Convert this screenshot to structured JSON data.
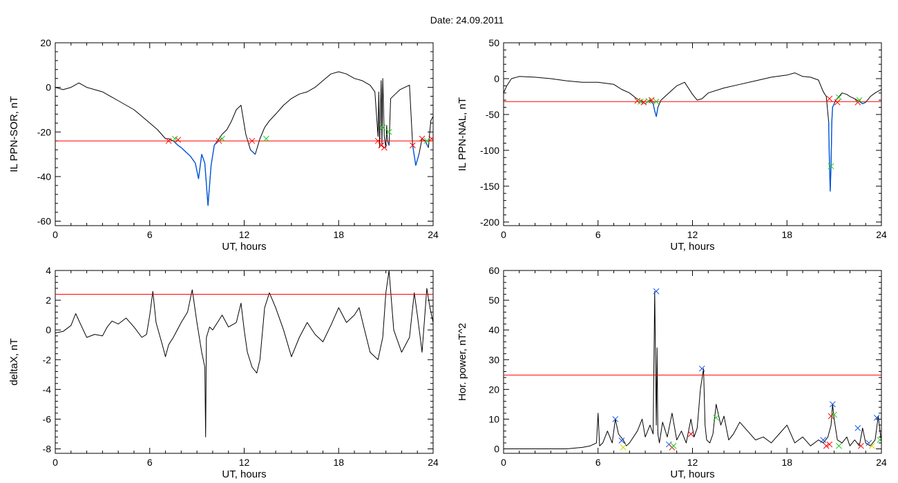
{
  "figure": {
    "title": "Date:  24.09.2011"
  },
  "chart_data": [
    {
      "type": "line",
      "id": "ppn-sor",
      "xlabel": "UT, hours",
      "ylabel": "IL PPN-SOR, nT",
      "xlim": [
        0,
        24
      ],
      "ylim": [
        -62,
        20
      ],
      "xticks": [
        0,
        6,
        12,
        18,
        24
      ],
      "yticks": [
        -60,
        -40,
        -20,
        0,
        20
      ],
      "threshold": -24,
      "colors": {
        "line": "#000000",
        "below_threshold": "#0055dd",
        "threshold": "#ff0000"
      },
      "x": [
        0,
        0.5,
        1.0,
        1.5,
        2.0,
        2.5,
        3.0,
        3.5,
        4.0,
        4.5,
        5.0,
        5.5,
        6.0,
        6.5,
        7.0,
        7.2,
        7.5,
        7.8,
        8.0,
        8.3,
        8.6,
        8.9,
        9.1,
        9.3,
        9.5,
        9.7,
        9.9,
        10.1,
        10.3,
        10.6,
        10.9,
        11.2,
        11.5,
        11.8,
        12.1,
        12.4,
        12.7,
        13.0,
        13.3,
        13.6,
        14.0,
        14.5,
        15.0,
        15.5,
        16.0,
        16.5,
        17.0,
        17.5,
        18.0,
        18.5,
        19.0,
        19.5,
        20.0,
        20.3,
        20.5,
        20.55,
        20.6,
        20.7,
        20.75,
        20.8,
        20.9,
        21.0,
        21.05,
        21.1,
        21.2,
        21.3,
        21.6,
        21.9,
        22.2,
        22.5,
        22.7,
        22.9,
        23.1,
        23.3,
        23.5,
        23.7,
        23.85,
        24.0
      ],
      "values": [
        0,
        -1,
        0,
        2,
        0,
        -1,
        -2,
        -4,
        -6,
        -8,
        -10,
        -13,
        -16,
        -19,
        -23,
        -23,
        -24,
        -26,
        -27,
        -29,
        -31,
        -34,
        -41,
        -30,
        -34,
        -53,
        -35,
        -26,
        -24,
        -21,
        -19,
        -15,
        -10,
        -8,
        -21,
        -28,
        -30,
        -23,
        -18,
        -15,
        -12,
        -8,
        -5,
        -3,
        -2,
        0,
        3,
        6,
        7,
        6,
        4,
        3,
        1,
        -2,
        -22,
        -2,
        -27,
        3,
        -26,
        4,
        -22,
        -27,
        -17,
        -24,
        -26,
        -5,
        -3,
        -1,
        0,
        1,
        -26,
        -35,
        -30,
        -23,
        -24,
        -27,
        -15,
        -13
      ],
      "markers": [
        {
          "x": 7.2,
          "y": -24,
          "color": "red"
        },
        {
          "x": 7.6,
          "y": -23,
          "color": "green"
        },
        {
          "x": 7.8,
          "y": -23.5,
          "color": "red"
        },
        {
          "x": 10.4,
          "y": -24,
          "color": "red"
        },
        {
          "x": 10.6,
          "y": -23,
          "color": "green"
        },
        {
          "x": 12.5,
          "y": -24,
          "color": "red"
        },
        {
          "x": 13.4,
          "y": -23,
          "color": "green"
        },
        {
          "x": 20.5,
          "y": -24,
          "color": "red"
        },
        {
          "x": 20.7,
          "y": -26,
          "color": "red"
        },
        {
          "x": 20.8,
          "y": -18,
          "color": "green"
        },
        {
          "x": 20.9,
          "y": -27,
          "color": "red"
        },
        {
          "x": 21.2,
          "y": -20,
          "color": "green"
        },
        {
          "x": 22.7,
          "y": -26,
          "color": "red"
        },
        {
          "x": 23.3,
          "y": -23,
          "color": "red"
        },
        {
          "x": 23.6,
          "y": -24,
          "color": "green"
        },
        {
          "x": 23.9,
          "y": -23,
          "color": "red"
        }
      ]
    },
    {
      "type": "line",
      "id": "ppn-nal",
      "xlabel": "UT, hours",
      "ylabel": "IL PPN-NAL, nT",
      "xlim": [
        0,
        24
      ],
      "ylim": [
        -205,
        50
      ],
      "xticks": [
        0,
        6,
        12,
        18,
        24
      ],
      "yticks": [
        -200,
        -150,
        -100,
        -50,
        0,
        50
      ],
      "threshold": -32,
      "colors": {
        "line": "#000000",
        "below_threshold": "#0055dd",
        "threshold": "#ff0000"
      },
      "x": [
        0,
        0.2,
        0.5,
        1.0,
        2.0,
        3.0,
        4.0,
        5.0,
        6.0,
        7.0,
        7.5,
        8.0,
        8.4,
        8.7,
        9.0,
        9.3,
        9.5,
        9.6,
        9.7,
        9.8,
        10.0,
        10.5,
        11.0,
        11.5,
        12.0,
        12.3,
        12.6,
        13.0,
        14.0,
        15.0,
        16.0,
        17.0,
        18.0,
        18.5,
        19.0,
        19.5,
        20.0,
        20.3,
        20.5,
        20.65,
        20.7,
        20.75,
        20.8,
        20.85,
        20.9,
        21.0,
        21.1,
        21.3,
        21.5,
        21.8,
        22.0,
        22.3,
        22.6,
        22.8,
        23.0,
        23.3,
        23.6,
        24.0
      ],
      "values": [
        -20,
        -10,
        0,
        3,
        2,
        0,
        -3,
        -5,
        -5,
        -8,
        -15,
        -20,
        -27,
        -31,
        -35,
        -30,
        -35,
        -45,
        -53,
        -40,
        -30,
        -20,
        -10,
        -5,
        -22,
        -30,
        -28,
        -20,
        -13,
        -8,
        -3,
        2,
        5,
        8,
        3,
        2,
        -2,
        -18,
        -25,
        -60,
        -120,
        -157,
        -120,
        -60,
        -40,
        -35,
        -30,
        -25,
        -20,
        -22,
        -25,
        -28,
        -32,
        -35,
        -33,
        -25,
        -20,
        -15
      ],
      "markers": [
        {
          "x": 8.5,
          "y": -31,
          "color": "red"
        },
        {
          "x": 8.7,
          "y": -32,
          "color": "green"
        },
        {
          "x": 8.9,
          "y": -33,
          "color": "red"
        },
        {
          "x": 9.2,
          "y": -31,
          "color": "green"
        },
        {
          "x": 9.4,
          "y": -30,
          "color": "red"
        },
        {
          "x": 9.7,
          "y": -32,
          "color": "green"
        },
        {
          "x": 20.7,
          "y": -28,
          "color": "red"
        },
        {
          "x": 20.8,
          "y": -122,
          "color": "green"
        },
        {
          "x": 21.2,
          "y": -33,
          "color": "red"
        },
        {
          "x": 21.3,
          "y": -26,
          "color": "green"
        },
        {
          "x": 22.5,
          "y": -33,
          "color": "red"
        },
        {
          "x": 22.6,
          "y": -30,
          "color": "green"
        }
      ]
    },
    {
      "type": "line",
      "id": "deltax",
      "xlabel": "UT, hours",
      "ylabel": "deltaX, nT",
      "xlim": [
        0,
        24
      ],
      "ylim": [
        -8.3,
        4
      ],
      "xticks": [
        0,
        6,
        12,
        18,
        24
      ],
      "yticks": [
        -8,
        -6,
        -4,
        -2,
        0,
        2,
        4
      ],
      "threshold": 2.4,
      "colors": {
        "line": "#000000",
        "threshold": "#ff0000"
      },
      "x": [
        0,
        0.5,
        1.0,
        1.3,
        1.6,
        2.0,
        2.5,
        3.0,
        3.3,
        3.6,
        4.0,
        4.5,
        5.0,
        5.5,
        5.8,
        6.0,
        6.2,
        6.4,
        6.8,
        7.0,
        7.2,
        7.5,
        8.0,
        8.4,
        8.7,
        9.0,
        9.3,
        9.5,
        9.55,
        9.6,
        9.8,
        10.0,
        10.3,
        10.6,
        11.0,
        11.5,
        11.8,
        12.0,
        12.2,
        12.5,
        12.8,
        13.0,
        13.3,
        13.6,
        14.0,
        14.5,
        15.0,
        15.5,
        16.0,
        16.5,
        17.0,
        17.5,
        18.0,
        18.5,
        19.0,
        19.3,
        19.6,
        20.0,
        20.5,
        20.8,
        21.0,
        21.2,
        21.5,
        22.0,
        22.5,
        22.8,
        23.0,
        23.3,
        23.6,
        23.8,
        24.0
      ],
      "values": [
        -0.2,
        -0.1,
        0.3,
        1.1,
        0.4,
        -0.5,
        -0.3,
        -0.4,
        0.2,
        0.6,
        0.4,
        0.8,
        0.2,
        -0.5,
        -0.3,
        1.0,
        2.6,
        0.5,
        -1.0,
        -1.8,
        -1.0,
        -0.5,
        0.5,
        1.2,
        2.7,
        0.5,
        -1.5,
        -2.5,
        -7.2,
        -0.5,
        0.2,
        0.0,
        0.5,
        1.0,
        0.2,
        0.5,
        1.8,
        0.0,
        -1.5,
        -2.5,
        -2.9,
        -2.0,
        1.5,
        2.5,
        1.5,
        0.0,
        -1.8,
        -0.5,
        0.5,
        -0.3,
        -0.8,
        0.3,
        1.5,
        0.5,
        1.0,
        1.5,
        0.2,
        -1.5,
        -2.0,
        -0.5,
        2.5,
        4.0,
        0.0,
        -1.5,
        -0.5,
        2.5,
        1.0,
        -1.5,
        2.8,
        1.5,
        0.5
      ]
    },
    {
      "type": "line",
      "id": "hor-power",
      "xlabel": "UT, hours",
      "ylabel": "Hor. power, nT^2",
      "xlim": [
        0,
        24
      ],
      "ylim": [
        -1.5,
        60
      ],
      "xticks": [
        0,
        6,
        12,
        18,
        24
      ],
      "yticks": [
        0,
        10,
        20,
        30,
        40,
        50,
        60
      ],
      "threshold": 24.8,
      "colors": {
        "line": "#000000",
        "threshold": "#ff0000"
      },
      "x": [
        0,
        2.0,
        4.0,
        5.0,
        5.5,
        5.9,
        6.0,
        6.1,
        6.3,
        6.6,
        6.9,
        7.1,
        7.3,
        7.6,
        7.8,
        8.0,
        8.5,
        8.8,
        9.0,
        9.3,
        9.5,
        9.6,
        9.7,
        9.75,
        9.8,
        9.9,
        10.1,
        10.4,
        10.7,
        11.0,
        11.3,
        11.6,
        11.9,
        12.1,
        12.3,
        12.5,
        12.7,
        12.8,
        12.9,
        13.1,
        13.3,
        13.5,
        13.8,
        14.0,
        14.3,
        14.6,
        15.0,
        15.5,
        16.0,
        16.5,
        17.0,
        17.5,
        18.0,
        18.5,
        19.0,
        19.5,
        20.0,
        20.3,
        20.6,
        20.8,
        20.9,
        21.0,
        21.2,
        21.5,
        21.8,
        22.0,
        22.3,
        22.6,
        22.8,
        23.0,
        23.3,
        23.6,
        23.8,
        24.0
      ],
      "values": [
        0,
        0,
        0,
        0.5,
        1,
        2,
        12,
        1,
        2,
        6,
        2,
        10,
        5,
        3,
        1,
        2,
        6,
        10,
        4,
        8,
        5,
        53,
        8,
        34,
        5,
        2,
        9,
        4,
        12,
        3,
        6,
        2,
        10,
        4,
        7,
        20,
        27,
        8,
        3,
        2,
        5,
        15,
        8,
        11,
        3,
        5,
        9,
        6,
        3,
        4,
        2,
        5,
        8,
        2,
        4,
        1,
        3,
        2,
        4,
        8,
        15,
        10,
        3,
        2,
        4,
        1,
        3,
        1,
        7,
        2,
        1,
        3,
        11,
        2
      ],
      "markers": [
        {
          "x": 7.1,
          "y": 10,
          "color": "blue"
        },
        {
          "x": 7.5,
          "y": 2.8,
          "color": "blue"
        },
        {
          "x": 7.6,
          "y": 0.5,
          "color": "yellow"
        },
        {
          "x": 9.7,
          "y": 53,
          "color": "blue"
        },
        {
          "x": 10.5,
          "y": 1.5,
          "color": "blue"
        },
        {
          "x": 10.7,
          "y": 0.5,
          "color": "red"
        },
        {
          "x": 10.8,
          "y": 1,
          "color": "green"
        },
        {
          "x": 11.9,
          "y": 5,
          "color": "red"
        },
        {
          "x": 12.6,
          "y": 27,
          "color": "blue"
        },
        {
          "x": 13.5,
          "y": 10.5,
          "color": "green"
        },
        {
          "x": 20.3,
          "y": 3,
          "color": "blue"
        },
        {
          "x": 20.5,
          "y": 1,
          "color": "red"
        },
        {
          "x": 20.7,
          "y": 1.5,
          "color": "red"
        },
        {
          "x": 20.8,
          "y": 11,
          "color": "red"
        },
        {
          "x": 20.9,
          "y": 15,
          "color": "blue"
        },
        {
          "x": 21.0,
          "y": 11.5,
          "color": "green"
        },
        {
          "x": 21.3,
          "y": 1,
          "color": "green"
        },
        {
          "x": 22.5,
          "y": 7,
          "color": "blue"
        },
        {
          "x": 22.7,
          "y": 1,
          "color": "red"
        },
        {
          "x": 23.2,
          "y": 2,
          "color": "blue"
        },
        {
          "x": 23.4,
          "y": 1,
          "color": "yellow"
        },
        {
          "x": 23.7,
          "y": 10.5,
          "color": "blue"
        },
        {
          "x": 23.9,
          "y": 3,
          "color": "green"
        }
      ]
    }
  ]
}
